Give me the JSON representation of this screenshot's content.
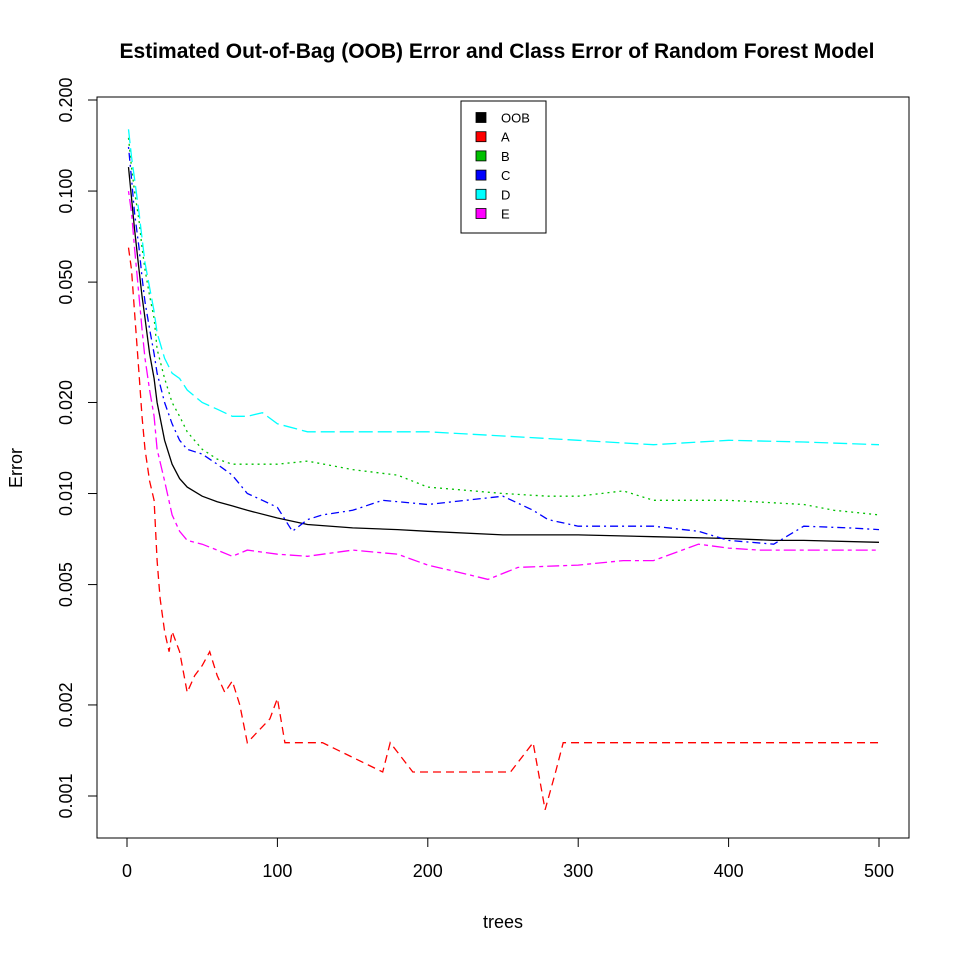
{
  "chart_data": {
    "type": "line",
    "title": "Estimated Out-of-Bag (OOB) Error and Class Error of Random Forest Model",
    "xlabel": "trees",
    "ylabel": "Error",
    "xlim": [
      0,
      500
    ],
    "ylim": [
      0.001,
      0.2
    ],
    "y_scale": "log",
    "grid": false,
    "legend_position": "top-center",
    "x_ticks": [
      0,
      100,
      200,
      300,
      400,
      500
    ],
    "x_tick_labels": [
      "0",
      "100",
      "200",
      "300",
      "400",
      "500"
    ],
    "y_ticks": [
      0.001,
      0.002,
      0.005,
      0.01,
      0.02,
      0.05,
      0.1,
      0.2
    ],
    "y_tick_labels": [
      "0.001",
      "0.002",
      "0.005",
      "0.010",
      "0.020",
      "0.050",
      "0.100",
      "0.200"
    ],
    "series": [
      {
        "name": "OOB",
        "color": "#000000",
        "dash": "solid",
        "x": [
          1,
          3,
          5,
          8,
          10,
          12,
          15,
          18,
          20,
          25,
          30,
          35,
          40,
          50,
          60,
          70,
          80,
          100,
          120,
          150,
          180,
          200,
          250,
          300,
          350,
          400,
          430,
          450,
          500
        ],
        "y": [
          0.12,
          0.095,
          0.075,
          0.055,
          0.045,
          0.038,
          0.029,
          0.024,
          0.02,
          0.015,
          0.0125,
          0.0112,
          0.0105,
          0.0098,
          0.0094,
          0.0091,
          0.0088,
          0.0083,
          0.0079,
          0.0077,
          0.0076,
          0.0075,
          0.0073,
          0.0073,
          0.0072,
          0.0071,
          0.007,
          0.007,
          0.0069
        ]
      },
      {
        "name": "A",
        "color": "#ff0000",
        "dash": "dashed",
        "x": [
          1,
          3,
          5,
          8,
          10,
          12,
          15,
          18,
          20,
          22,
          25,
          28,
          30,
          35,
          40,
          45,
          50,
          55,
          60,
          65,
          70,
          75,
          80,
          95,
          100,
          105,
          130,
          170,
          175,
          190,
          195,
          255,
          270,
          278,
          285,
          290,
          300,
          500
        ],
        "y": [
          0.065,
          0.055,
          0.04,
          0.025,
          0.018,
          0.014,
          0.011,
          0.0095,
          0.006,
          0.0045,
          0.0035,
          0.003,
          0.0035,
          0.003,
          0.0022,
          0.0025,
          0.0027,
          0.003,
          0.0025,
          0.0022,
          0.0024,
          0.002,
          0.0015,
          0.0018,
          0.0021,
          0.0015,
          0.0015,
          0.0012,
          0.0015,
          0.0012,
          0.0012,
          0.0012,
          0.0015,
          0.0009,
          0.0012,
          0.0015,
          0.0015,
          0.0015
        ]
      },
      {
        "name": "B",
        "color": "#00c000",
        "dash": "dotted",
        "x": [
          1,
          3,
          5,
          8,
          10,
          12,
          15,
          18,
          20,
          25,
          30,
          35,
          40,
          50,
          60,
          70,
          80,
          100,
          120,
          150,
          180,
          200,
          230,
          250,
          280,
          300,
          330,
          350,
          400,
          450,
          470,
          490,
          500
        ],
        "y": [
          0.15,
          0.12,
          0.1,
          0.08,
          0.065,
          0.055,
          0.045,
          0.038,
          0.03,
          0.024,
          0.02,
          0.018,
          0.016,
          0.014,
          0.013,
          0.0125,
          0.0125,
          0.0125,
          0.0128,
          0.012,
          0.0115,
          0.0105,
          0.0102,
          0.01,
          0.0098,
          0.0098,
          0.0102,
          0.0095,
          0.0095,
          0.0092,
          0.0088,
          0.0086,
          0.0085
        ]
      },
      {
        "name": "C",
        "color": "#0000ff",
        "dash": "dotdash",
        "x": [
          1,
          3,
          5,
          8,
          10,
          12,
          15,
          18,
          20,
          25,
          30,
          35,
          40,
          50,
          60,
          70,
          80,
          90,
          100,
          110,
          120,
          130,
          150,
          170,
          200,
          250,
          270,
          280,
          300,
          350,
          380,
          400,
          430,
          450,
          480,
          500
        ],
        "y": [
          0.14,
          0.11,
          0.085,
          0.065,
          0.052,
          0.043,
          0.035,
          0.029,
          0.025,
          0.02,
          0.017,
          0.015,
          0.014,
          0.0135,
          0.0125,
          0.0115,
          0.01,
          0.0095,
          0.009,
          0.0075,
          0.0082,
          0.0085,
          0.0088,
          0.0095,
          0.0092,
          0.0098,
          0.0088,
          0.0082,
          0.0078,
          0.0078,
          0.0075,
          0.007,
          0.0068,
          0.0078,
          0.0077,
          0.0076
        ]
      },
      {
        "name": "D",
        "color": "#00ffff",
        "dash": "longdash",
        "x": [
          1,
          3,
          5,
          8,
          10,
          12,
          15,
          18,
          20,
          25,
          30,
          35,
          40,
          50,
          60,
          70,
          80,
          90,
          100,
          120,
          150,
          180,
          200,
          250,
          300,
          350,
          400,
          450,
          500
        ],
        "y": [
          0.16,
          0.13,
          0.11,
          0.085,
          0.07,
          0.058,
          0.048,
          0.04,
          0.034,
          0.028,
          0.025,
          0.024,
          0.022,
          0.02,
          0.019,
          0.018,
          0.018,
          0.0185,
          0.017,
          0.016,
          0.016,
          0.016,
          0.016,
          0.0155,
          0.015,
          0.0145,
          0.015,
          0.0148,
          0.0145
        ]
      },
      {
        "name": "E",
        "color": "#ff00ff",
        "dash": "twodash",
        "x": [
          1,
          3,
          5,
          8,
          10,
          12,
          15,
          18,
          20,
          25,
          30,
          35,
          40,
          50,
          60,
          70,
          80,
          100,
          120,
          150,
          180,
          200,
          220,
          240,
          260,
          300,
          330,
          350,
          380,
          400,
          420,
          450,
          500
        ],
        "y": [
          0.1,
          0.085,
          0.065,
          0.045,
          0.035,
          0.028,
          0.022,
          0.018,
          0.014,
          0.011,
          0.0085,
          0.0075,
          0.007,
          0.0068,
          0.0065,
          0.0062,
          0.0065,
          0.0063,
          0.0062,
          0.0065,
          0.0063,
          0.0058,
          0.0055,
          0.0052,
          0.0057,
          0.0058,
          0.006,
          0.006,
          0.0068,
          0.0066,
          0.0065,
          0.0065,
          0.0065
        ]
      }
    ]
  }
}
